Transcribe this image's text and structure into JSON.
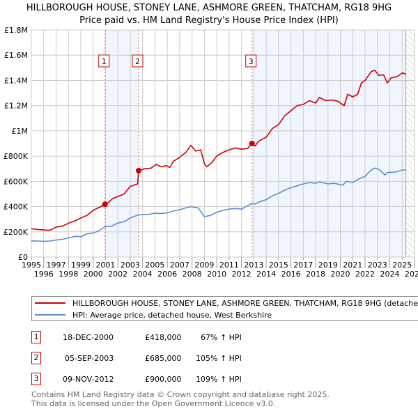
{
  "header": {
    "title": "HILLBOROUGH HOUSE, STONEY LANE, ASHMORE GREEN, THATCHAM, RG18 9HG",
    "subtitle": "Price paid vs. HM Land Registry's House Price Index (HPI)"
  },
  "chart_data": {
    "type": "line",
    "title": "HILLBOROUGH HOUSE, STONEY LANE, ASHMORE GREEN, THATCHAM, RG18 9HG",
    "subtitle": "Price paid vs. HM Land Registry's House Price Index (HPI)",
    "xlim": [
      1995,
      2026
    ],
    "ylim": [
      0,
      1800000
    ],
    "x_ticks": [
      "1995",
      "1996",
      "1997",
      "1998",
      "1999",
      "2000",
      "2001",
      "2002",
      "2003",
      "2004",
      "2005",
      "2006",
      "2007",
      "2008",
      "2009",
      "2010",
      "2011",
      "2012",
      "2013",
      "2014",
      "2015",
      "2016",
      "2017",
      "2018",
      "2019",
      "2020",
      "2021",
      "2022",
      "2023",
      "2024",
      "2025",
      "2026"
    ],
    "y_ticks": [
      {
        "v": 0,
        "label": "£0"
      },
      {
        "v": 200000,
        "label": "£200K"
      },
      {
        "v": 400000,
        "label": "£400K"
      },
      {
        "v": 600000,
        "label": "£600K"
      },
      {
        "v": 800000,
        "label": "£800K"
      },
      {
        "v": 1000000,
        "label": "£1M"
      },
      {
        "v": 1200000,
        "label": "£1.2M"
      },
      {
        "v": 1400000,
        "label": "£1.4M"
      },
      {
        "v": 1600000,
        "label": "£1.6M"
      },
      {
        "v": 1800000,
        "label": "£1.8M"
      }
    ],
    "grid": true,
    "series": [
      {
        "name": "HILLBOROUGH HOUSE, STONEY LANE, ASHMORE GREEN, THATCHAM, RG18 9HG (detached house)",
        "color": "#cc0000",
        "points": [
          [
            1995,
            225000
          ],
          [
            1995.5,
            218000
          ],
          [
            1996,
            215000
          ],
          [
            1996.5,
            212000
          ],
          [
            1997,
            238000
          ],
          [
            1997.5,
            245000
          ],
          [
            1998,
            268000
          ],
          [
            1998.6,
            290000
          ],
          [
            1999,
            310000
          ],
          [
            1999.5,
            330000
          ],
          [
            2000,
            370000
          ],
          [
            2000.5,
            395000
          ],
          [
            2000.96,
            418000
          ],
          [
            2001.2,
            430000
          ],
          [
            2001.6,
            465000
          ],
          [
            2002,
            480000
          ],
          [
            2002.5,
            500000
          ],
          [
            2003,
            560000
          ],
          [
            2003.6,
            580000
          ],
          [
            2003.68,
            685000
          ],
          [
            2004.2,
            700000
          ],
          [
            2004.7,
            705000
          ],
          [
            2005.1,
            735000
          ],
          [
            2005.5,
            715000
          ],
          [
            2005.9,
            725000
          ],
          [
            2006.2,
            710000
          ],
          [
            2006.5,
            760000
          ],
          [
            2007,
            790000
          ],
          [
            2007.5,
            830000
          ],
          [
            2007.9,
            885000
          ],
          [
            2008.3,
            840000
          ],
          [
            2008.7,
            850000
          ],
          [
            2009,
            740000
          ],
          [
            2009.2,
            715000
          ],
          [
            2009.6,
            750000
          ],
          [
            2010,
            800000
          ],
          [
            2010.5,
            830000
          ],
          [
            2011,
            850000
          ],
          [
            2011.5,
            865000
          ],
          [
            2012,
            855000
          ],
          [
            2012.5,
            860000
          ],
          [
            2012.85,
            900000
          ],
          [
            2013.1,
            880000
          ],
          [
            2013.4,
            920000
          ],
          [
            2014,
            950000
          ],
          [
            2014.5,
            1020000
          ],
          [
            2015,
            1050000
          ],
          [
            2015.5,
            1120000
          ],
          [
            2016,
            1160000
          ],
          [
            2016.5,
            1200000
          ],
          [
            2017,
            1210000
          ],
          [
            2017.5,
            1240000
          ],
          [
            2018,
            1220000
          ],
          [
            2018.3,
            1265000
          ],
          [
            2018.8,
            1240000
          ],
          [
            2019.3,
            1245000
          ],
          [
            2019.8,
            1235000
          ],
          [
            2020.3,
            1200000
          ],
          [
            2020.6,
            1290000
          ],
          [
            2021,
            1270000
          ],
          [
            2021.4,
            1290000
          ],
          [
            2021.7,
            1380000
          ],
          [
            2022,
            1400000
          ],
          [
            2022.5,
            1470000
          ],
          [
            2022.8,
            1480000
          ],
          [
            2023.1,
            1440000
          ],
          [
            2023.5,
            1445000
          ],
          [
            2023.8,
            1380000
          ],
          [
            2024.1,
            1420000
          ],
          [
            2024.6,
            1430000
          ],
          [
            2025,
            1460000
          ],
          [
            2025.3,
            1450000
          ]
        ]
      },
      {
        "name": "HPI: Average price, detached house, West Berkshire",
        "color": "#5b8fd1",
        "points": [
          [
            1995,
            128000
          ],
          [
            1995.5,
            127000
          ],
          [
            1996,
            125000
          ],
          [
            1996.5,
            127000
          ],
          [
            1997,
            135000
          ],
          [
            1997.5,
            140000
          ],
          [
            1998,
            152000
          ],
          [
            1998.6,
            165000
          ],
          [
            1999,
            160000
          ],
          [
            1999.5,
            185000
          ],
          [
            2000,
            190000
          ],
          [
            2000.5,
            210000
          ],
          [
            2000.96,
            240000
          ],
          [
            2001.5,
            245000
          ],
          [
            2002,
            270000
          ],
          [
            2002.5,
            280000
          ],
          [
            2003,
            310000
          ],
          [
            2003.68,
            335000
          ],
          [
            2004.5,
            338000
          ],
          [
            2005,
            348000
          ],
          [
            2005.5,
            345000
          ],
          [
            2006,
            350000
          ],
          [
            2006.5,
            365000
          ],
          [
            2007,
            375000
          ],
          [
            2007.5,
            390000
          ],
          [
            2007.9,
            400000
          ],
          [
            2008.5,
            390000
          ],
          [
            2009,
            320000
          ],
          [
            2009.5,
            330000
          ],
          [
            2010,
            355000
          ],
          [
            2010.5,
            370000
          ],
          [
            2011,
            380000
          ],
          [
            2011.5,
            385000
          ],
          [
            2012,
            380000
          ],
          [
            2012.85,
            425000
          ],
          [
            2013.1,
            420000
          ],
          [
            2013.5,
            440000
          ],
          [
            2014,
            455000
          ],
          [
            2014.5,
            485000
          ],
          [
            2015,
            505000
          ],
          [
            2015.5,
            530000
          ],
          [
            2016,
            550000
          ],
          [
            2016.5,
            565000
          ],
          [
            2017,
            580000
          ],
          [
            2017.5,
            590000
          ],
          [
            2018,
            585000
          ],
          [
            2018.3,
            595000
          ],
          [
            2019,
            580000
          ],
          [
            2019.5,
            585000
          ],
          [
            2020.2,
            570000
          ],
          [
            2020.5,
            600000
          ],
          [
            2021,
            590000
          ],
          [
            2021.5,
            620000
          ],
          [
            2022,
            640000
          ],
          [
            2022.5,
            690000
          ],
          [
            2022.8,
            705000
          ],
          [
            2023.2,
            690000
          ],
          [
            2023.6,
            650000
          ],
          [
            2023.8,
            670000
          ],
          [
            2024.5,
            675000
          ],
          [
            2025,
            690000
          ],
          [
            2025.3,
            690000
          ]
        ]
      }
    ],
    "sales": [
      {
        "id": "1",
        "x": 2000.96,
        "y": 418000
      },
      {
        "id": "2",
        "x": 2003.68,
        "y": 685000
      },
      {
        "id": "3",
        "x": 2012.85,
        "y": 900000
      }
    ],
    "shaded_ranges": [
      [
        2000.96,
        2003.68
      ],
      [
        2012.85,
        2025.3
      ]
    ],
    "hatched_from": 2025.3,
    "legend_position": "bottom"
  },
  "legend": {
    "items": [
      {
        "label": "HILLBOROUGH HOUSE, STONEY LANE, ASHMORE GREEN, THATCHAM, RG18 9HG (detached house)",
        "color": "#cc0000"
      },
      {
        "label": "HPI: Average price, detached house, West Berkshire",
        "color": "#5b8fd1"
      }
    ]
  },
  "transactions": [
    {
      "id": "1",
      "date": "18-DEC-2000",
      "price": "£418,000",
      "hpi": "67% ↑ HPI"
    },
    {
      "id": "2",
      "date": "05-SEP-2003",
      "price": "£685,000",
      "hpi": "105% ↑ HPI"
    },
    {
      "id": "3",
      "date": "09-NOV-2012",
      "price": "£900,000",
      "hpi": "109% ↑ HPI"
    }
  ],
  "footer": {
    "line1": "Contains HM Land Registry data © Crown copyright and database right 2025.",
    "line2": "This data is licensed under the Open Government Licence v3.0."
  }
}
